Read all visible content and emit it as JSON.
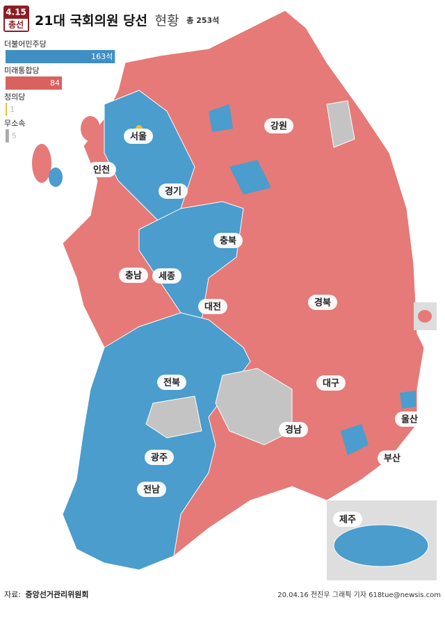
{
  "header": {
    "date": "4.15",
    "badge": "총선",
    "title": "21대 국회의원 당선",
    "subtitle": "현황",
    "total": "총 253석"
  },
  "legend": {
    "parties": [
      {
        "name": "더불어민주당",
        "seats": 163,
        "label": "163석",
        "color": "#3f8fc4"
      },
      {
        "name": "미래통합당",
        "seats": 84,
        "color": "#d9625f"
      },
      {
        "name": "정의당",
        "seats": 1,
        "color": "#e8c13a"
      },
      {
        "name": "무소속",
        "seats": 5,
        "color": "#a9a9a9"
      }
    ]
  },
  "regions": [
    "서울",
    "인천",
    "경기",
    "강원",
    "충북",
    "충남",
    "세종",
    "대전",
    "전북",
    "경북",
    "대구",
    "울산",
    "경남",
    "부산",
    "광주",
    "전남",
    "제주"
  ],
  "footer": {
    "source_label": "자료:",
    "source": "중앙선거관리위원회",
    "credit": "20.04.16 전진우 그래픽 기자 618tue@newsis.com"
  }
}
